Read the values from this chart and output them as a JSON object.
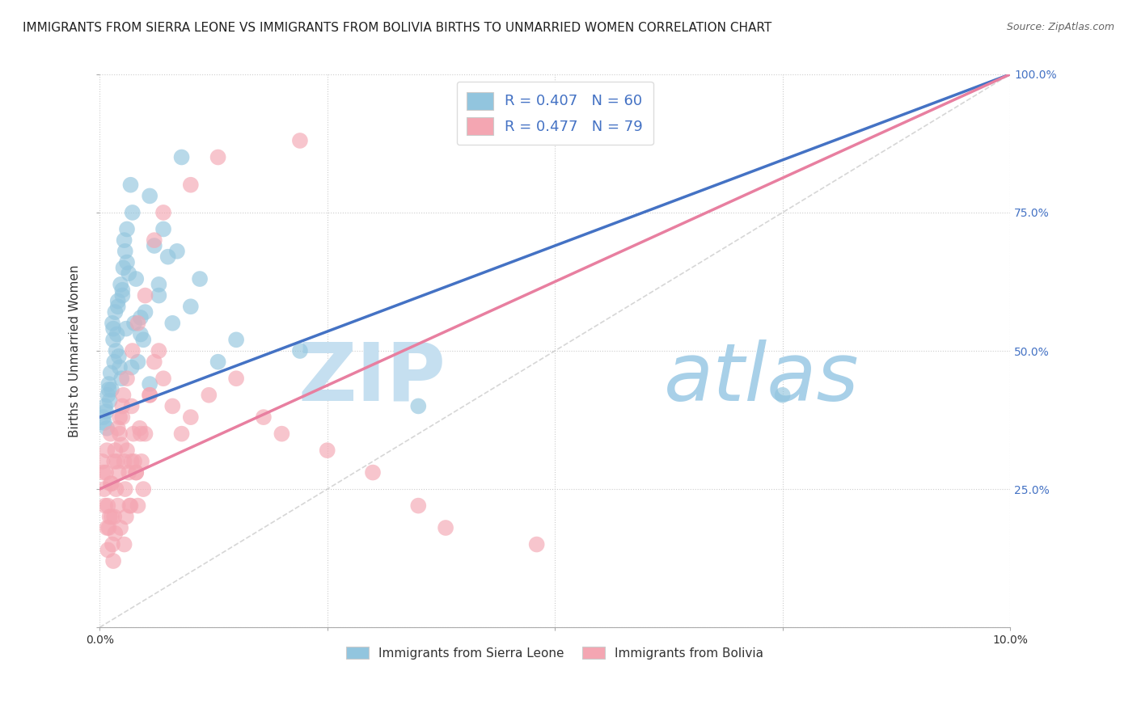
{
  "title": "IMMIGRANTS FROM SIERRA LEONE VS IMMIGRANTS FROM BOLIVIA BIRTHS TO UNMARRIED WOMEN CORRELATION CHART",
  "source": "Source: ZipAtlas.com",
  "ylabel_left": "Births to Unmarried Women",
  "x_min": 0.0,
  "x_max": 10.0,
  "y_min": 0.0,
  "y_max": 100.0,
  "legend_label_1": "R = 0.407   N = 60",
  "legend_label_2": "R = 0.477   N = 79",
  "color_sierra": "#92c5de",
  "color_bolivia": "#f4a6b2",
  "color_sierra_dark": "#4472c4",
  "color_bolivia_dark": "#e87fa0",
  "watermark_zip_color": "#c8dff0",
  "watermark_atlas_color": "#a8cce0",
  "title_fontsize": 11,
  "series1_name": "Immigrants from Sierra Leone",
  "series2_name": "Immigrants from Bolivia",
  "sierra_intercept": 38.0,
  "sierra_slope": 6.2,
  "bolivia_intercept": 25.0,
  "bolivia_slope": 7.5,
  "sierra_x": [
    0.04,
    0.06,
    0.08,
    0.09,
    0.1,
    0.11,
    0.12,
    0.13,
    0.14,
    0.15,
    0.16,
    0.17,
    0.18,
    0.19,
    0.2,
    0.21,
    0.22,
    0.23,
    0.24,
    0.25,
    0.26,
    0.27,
    0.28,
    0.29,
    0.3,
    0.32,
    0.34,
    0.36,
    0.38,
    0.4,
    0.42,
    0.45,
    0.48,
    0.5,
    0.55,
    0.6,
    0.65,
    0.7,
    0.75,
    0.8,
    0.85,
    0.9,
    1.0,
    1.1,
    1.3,
    1.5,
    2.2,
    3.5,
    0.05,
    0.07,
    0.1,
    0.15,
    0.2,
    0.25,
    0.3,
    0.35,
    0.45,
    0.55,
    0.65,
    7.5
  ],
  "sierra_y": [
    38,
    40,
    36,
    42,
    44,
    41,
    46,
    43,
    55,
    52,
    48,
    57,
    50,
    53,
    58,
    49,
    47,
    62,
    45,
    60,
    65,
    70,
    68,
    54,
    72,
    64,
    80,
    75,
    55,
    63,
    48,
    56,
    52,
    57,
    78,
    69,
    60,
    72,
    67,
    55,
    68,
    85,
    58,
    63,
    48,
    52,
    50,
    40,
    37,
    39,
    43,
    54,
    59,
    61,
    66,
    47,
    53,
    44,
    62,
    42
  ],
  "bolivia_x": [
    0.03,
    0.05,
    0.07,
    0.08,
    0.09,
    0.1,
    0.11,
    0.12,
    0.13,
    0.14,
    0.15,
    0.16,
    0.17,
    0.18,
    0.19,
    0.2,
    0.21,
    0.22,
    0.23,
    0.24,
    0.25,
    0.26,
    0.27,
    0.28,
    0.29,
    0.3,
    0.32,
    0.34,
    0.35,
    0.37,
    0.38,
    0.4,
    0.42,
    0.44,
    0.46,
    0.48,
    0.5,
    0.55,
    0.6,
    0.65,
    0.7,
    0.8,
    0.9,
    1.0,
    1.2,
    1.5,
    1.8,
    2.0,
    2.5,
    3.0,
    3.5,
    3.8,
    0.04,
    0.06,
    0.08,
    0.12,
    0.16,
    0.2,
    0.25,
    0.3,
    0.36,
    0.42,
    0.5,
    0.6,
    0.7,
    1.0,
    1.3,
    2.2,
    0.33,
    0.4,
    0.27,
    0.55,
    0.45,
    0.35,
    4.8,
    0.22,
    0.17,
    0.13,
    0.09
  ],
  "bolivia_y": [
    30,
    25,
    28,
    32,
    22,
    18,
    20,
    35,
    26,
    15,
    12,
    20,
    17,
    25,
    30,
    22,
    28,
    35,
    18,
    33,
    38,
    42,
    30,
    25,
    20,
    32,
    28,
    22,
    40,
    35,
    30,
    28,
    22,
    36,
    30,
    25,
    35,
    42,
    48,
    50,
    45,
    40,
    35,
    38,
    42,
    45,
    38,
    35,
    32,
    28,
    22,
    18,
    28,
    22,
    18,
    26,
    30,
    36,
    40,
    45,
    50,
    55,
    60,
    70,
    75,
    80,
    85,
    88,
    22,
    28,
    15,
    42,
    35,
    30,
    15,
    38,
    32,
    20,
    14
  ]
}
